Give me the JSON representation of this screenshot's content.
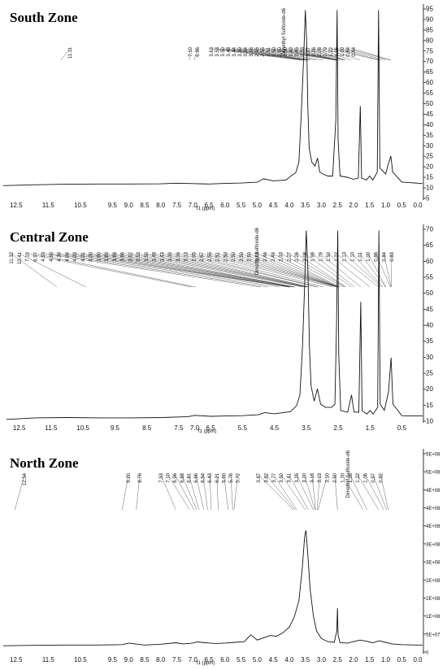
{
  "chart_data": [
    {
      "type": "line",
      "title": "South Zone",
      "xlabel": "f1 (ppm)",
      "xlim": [
        12.9,
        -0.15
      ],
      "x_ticks": [
        "12.5",
        "11.5",
        "10.5",
        "9.5",
        "9.0",
        "8.5",
        "8.0",
        "7.5",
        "7.0",
        "6.5",
        "6.0",
        "5.5",
        "5.0",
        "4.5",
        "4.0",
        "3.5",
        "3.0",
        "2.5",
        "2.0",
        "1.5",
        "1.0",
        "0.5",
        "0.0"
      ],
      "y_ticks": [
        "95",
        "90",
        "85",
        "80",
        "75",
        "70",
        "65",
        "60",
        "55",
        "50",
        "45",
        "40",
        "35",
        "30",
        "25",
        "20",
        "15",
        "10",
        "5"
      ],
      "ylim": [
        0,
        98
      ],
      "solvent_label": "Dimethyl Sulfoxide-d6",
      "solvent_ppm": 2.5,
      "peak_labels": [
        "11.11",
        "7.10",
        "6.96",
        "3.63",
        "3.53",
        "3.50",
        "3.48",
        "3.44",
        "3.39",
        "3.34",
        "3.16",
        "2.95",
        "2.55",
        "2.51",
        "2.50",
        "2.50",
        "2.50",
        "2.49",
        "2.45",
        "2.33",
        "2.27",
        "2.26",
        "2.08",
        "1.79",
        "1.22",
        "1.15",
        "1.00",
        "0.84",
        "0.84"
      ],
      "baseline": [
        [
          12.9,
          7.2
        ],
        [
          12.0,
          7.6
        ],
        [
          11.0,
          7.9
        ],
        [
          10.0,
          8.0
        ],
        [
          9.0,
          8.0
        ],
        [
          8.0,
          8.1
        ],
        [
          7.5,
          8.4
        ],
        [
          7.0,
          8.2
        ],
        [
          6.5,
          8.0
        ],
        [
          6.0,
          8.3
        ],
        [
          5.5,
          8.5
        ],
        [
          5.0,
          8.9
        ],
        [
          4.8,
          10.6
        ],
        [
          4.5,
          9.6
        ],
        [
          4.1,
          10.0
        ],
        [
          4.0,
          11.3
        ],
        [
          3.9,
          12.6
        ],
        [
          3.8,
          13.6
        ],
        [
          3.7,
          19.0
        ],
        [
          3.62,
          45.0
        ],
        [
          3.55,
          72.0
        ],
        [
          3.5,
          95.0
        ],
        [
          3.46,
          80.0
        ],
        [
          3.42,
          46.0
        ],
        [
          3.38,
          26.0
        ],
        [
          3.3,
          19.0
        ],
        [
          3.2,
          17.0
        ],
        [
          3.12,
          21.0
        ],
        [
          3.05,
          14.0
        ],
        [
          2.95,
          13.0
        ],
        [
          2.8,
          12.0
        ],
        [
          2.65,
          12.0
        ],
        [
          2.55,
          40.0
        ],
        [
          2.51,
          95.0
        ],
        [
          2.48,
          30.0
        ],
        [
          2.42,
          12.0
        ],
        [
          2.2,
          11.4
        ],
        [
          2.0,
          10.4
        ],
        [
          1.85,
          11.0
        ],
        [
          1.79,
          47.0
        ],
        [
          1.75,
          11.0
        ],
        [
          1.6,
          10.0
        ],
        [
          1.5,
          12.0
        ],
        [
          1.4,
          10.0
        ],
        [
          1.26,
          14.0
        ],
        [
          1.22,
          95.0
        ],
        [
          1.18,
          16.0
        ],
        [
          1.0,
          13.0
        ],
        [
          0.9,
          19.0
        ],
        [
          0.84,
          22.0
        ],
        [
          0.78,
          14.0
        ],
        [
          0.5,
          9.0
        ],
        [
          0.0,
          8.4
        ],
        [
          -0.15,
          8.2
        ]
      ]
    },
    {
      "type": "line",
      "title": "Central Zone",
      "xlabel": "f1 (ppm)",
      "xlim": [
        12.9,
        -0.15
      ],
      "x_ticks": [
        "12.5",
        "11.5",
        "10.5",
        "9.5",
        "8.5",
        "7.5",
        "7.0",
        "6.5",
        "5.5",
        "4.5",
        "3.5",
        "2.5",
        "1.5",
        "0.5"
      ],
      "y_ticks": [
        "70",
        "65",
        "60",
        "55",
        "50",
        "45",
        "40",
        "35",
        "30",
        "25",
        "20",
        "15",
        "10"
      ],
      "ylim": [
        8,
        72
      ],
      "solvent_label": "Dimethyl Sulfoxide-d6",
      "solvent_ppm": 2.5,
      "peak_labels": [
        "11.32",
        "10.41",
        "7.10",
        "6.97",
        "4.93",
        "4.69",
        "4.34",
        "4.04",
        "4.03",
        "4.01",
        "4.00",
        "3.90",
        "3.89",
        "3.88",
        "3.86",
        "3.62",
        "3.53",
        "3.50",
        "3.48",
        "3.43",
        "3.39",
        "3.16",
        "3.13",
        "2.95",
        "2.67",
        "2.55",
        "2.51",
        "2.50",
        "2.50",
        "2.50",
        "2.50",
        "2.49",
        "2.46",
        "2.45",
        "2.33",
        "2.27",
        "2.26",
        "2.08",
        "1.98",
        "1.79",
        "1.50",
        "1.22",
        "1.13",
        "1.10",
        "1.01",
        "1.00",
        "0.86",
        "0.84",
        "0.83"
      ],
      "baseline": [
        [
          12.9,
          9.1
        ],
        [
          12.0,
          9.6
        ],
        [
          11.0,
          9.7
        ],
        [
          10.0,
          9.6
        ],
        [
          9.0,
          9.6
        ],
        [
          8.0,
          9.7
        ],
        [
          7.2,
          10.0
        ],
        [
          7.0,
          10.4
        ],
        [
          6.5,
          10.1
        ],
        [
          6.0,
          10.2
        ],
        [
          5.5,
          10.3
        ],
        [
          5.0,
          10.6
        ],
        [
          4.8,
          11.3
        ],
        [
          4.5,
          10.9
        ],
        [
          4.0,
          11.6
        ],
        [
          3.9,
          12.5
        ],
        [
          3.8,
          13.6
        ],
        [
          3.7,
          17.0
        ],
        [
          3.62,
          32.0
        ],
        [
          3.55,
          52.0
        ],
        [
          3.5,
          70.0
        ],
        [
          3.45,
          58.0
        ],
        [
          3.4,
          33.0
        ],
        [
          3.35,
          20.0
        ],
        [
          3.25,
          15.0
        ],
        [
          3.15,
          19.0
        ],
        [
          3.05,
          14.0
        ],
        [
          2.9,
          13.0
        ],
        [
          2.7,
          13.0
        ],
        [
          2.6,
          14.0
        ],
        [
          2.55,
          40.0
        ],
        [
          2.51,
          70.0
        ],
        [
          2.48,
          30.0
        ],
        [
          2.42,
          12.0
        ],
        [
          2.2,
          11.4
        ],
        [
          2.08,
          17.0
        ],
        [
          2.0,
          11.5
        ],
        [
          1.85,
          11.4
        ],
        [
          1.79,
          47.0
        ],
        [
          1.75,
          12.0
        ],
        [
          1.6,
          10.8
        ],
        [
          1.5,
          12.0
        ],
        [
          1.4,
          10.8
        ],
        [
          1.26,
          13.0
        ],
        [
          1.22,
          70.0
        ],
        [
          1.18,
          14.0
        ],
        [
          1.05,
          12.0
        ],
        [
          0.92,
          18.0
        ],
        [
          0.84,
          29.0
        ],
        [
          0.78,
          14.0
        ],
        [
          0.5,
          10.3
        ],
        [
          0.2,
          10.2
        ],
        [
          -0.15,
          10.2
        ]
      ]
    },
    {
      "type": "line",
      "title": "North Zone",
      "xlabel": "f1 (ppm)",
      "xlim": [
        12.9,
        -0.15
      ],
      "x_ticks": [
        "12.5",
        "11.5",
        "10.5",
        "9.5",
        "9.0",
        "8.5",
        "8.0",
        "7.5",
        "7.0",
        "6.5",
        "6.0",
        "5.5",
        "5.0",
        "4.5",
        "4.0",
        "3.5",
        "3.0",
        "2.5",
        "2.0",
        "1.5",
        "1.0",
        "0.5",
        "0.0"
      ],
      "y_ticks": [
        "5E+08",
        "5E+08",
        "4E+08",
        "4E+08",
        "4E+08",
        "3E+08",
        "3E+08",
        "2E+08",
        "2E+08",
        "1E+08",
        "5E+07",
        "0"
      ],
      "ylim": [
        -20000000,
        520000000
      ],
      "solvent_label": "Dimethyl Sulfoxide-d6",
      "solvent_ppm": 2.5,
      "peak_labels": [
        "12.54",
        "9.20",
        "8.76",
        "7.53",
        "7.10",
        "6.96",
        "6.88",
        "6.81",
        "6.66",
        "6.54",
        "6.43",
        "6.21",
        "5.90",
        "5.76",
        "5.72",
        "3.87",
        "3.82",
        "3.77",
        "3.50",
        "3.41",
        "3.25",
        "3.20",
        "3.18",
        "3.13",
        "3.10",
        "2.50",
        "1.70",
        "1.58",
        "1.22",
        "1.06",
        "0.97",
        "0.92"
      ],
      "baseline": [
        [
          12.9,
          1000000
        ],
        [
          12.0,
          2000000
        ],
        [
          11.0,
          3000000
        ],
        [
          10.0,
          3000000
        ],
        [
          9.2,
          4000000
        ],
        [
          9.0,
          8000000
        ],
        [
          8.8,
          6000000
        ],
        [
          8.5,
          3000000
        ],
        [
          8.0,
          5000000
        ],
        [
          7.53,
          9000000
        ],
        [
          7.3,
          6000000
        ],
        [
          7.0,
          8000000
        ],
        [
          6.88,
          11000000
        ],
        [
          6.6,
          9000000
        ],
        [
          6.3,
          7000000
        ],
        [
          6.0,
          8000000
        ],
        [
          5.7,
          10000000
        ],
        [
          5.4,
          12000000
        ],
        [
          5.2,
          30000000
        ],
        [
          5.0,
          16000000
        ],
        [
          4.8,
          22000000
        ],
        [
          4.6,
          28000000
        ],
        [
          4.4,
          26000000
        ],
        [
          4.2,
          35000000
        ],
        [
          4.0,
          50000000
        ],
        [
          3.85,
          75000000
        ],
        [
          3.7,
          120000000
        ],
        [
          3.6,
          200000000
        ],
        [
          3.52,
          290000000
        ],
        [
          3.48,
          305000000
        ],
        [
          3.42,
          240000000
        ],
        [
          3.35,
          150000000
        ],
        [
          3.25,
          80000000
        ],
        [
          3.15,
          40000000
        ],
        [
          3.0,
          20000000
        ],
        [
          2.8,
          12000000
        ],
        [
          2.6,
          10000000
        ],
        [
          2.52,
          40000000
        ],
        [
          2.5,
          100000000
        ],
        [
          2.48,
          30000000
        ],
        [
          2.42,
          9000000
        ],
        [
          2.2,
          8000000
        ],
        [
          2.0,
          12000000
        ],
        [
          1.8,
          16000000
        ],
        [
          1.6,
          13000000
        ],
        [
          1.4,
          9000000
        ],
        [
          1.2,
          14000000
        ],
        [
          1.0,
          10000000
        ],
        [
          0.8,
          6000000
        ],
        [
          0.5,
          4000000
        ],
        [
          0.0,
          3000000
        ],
        [
          -0.15,
          3000000
        ]
      ]
    }
  ]
}
